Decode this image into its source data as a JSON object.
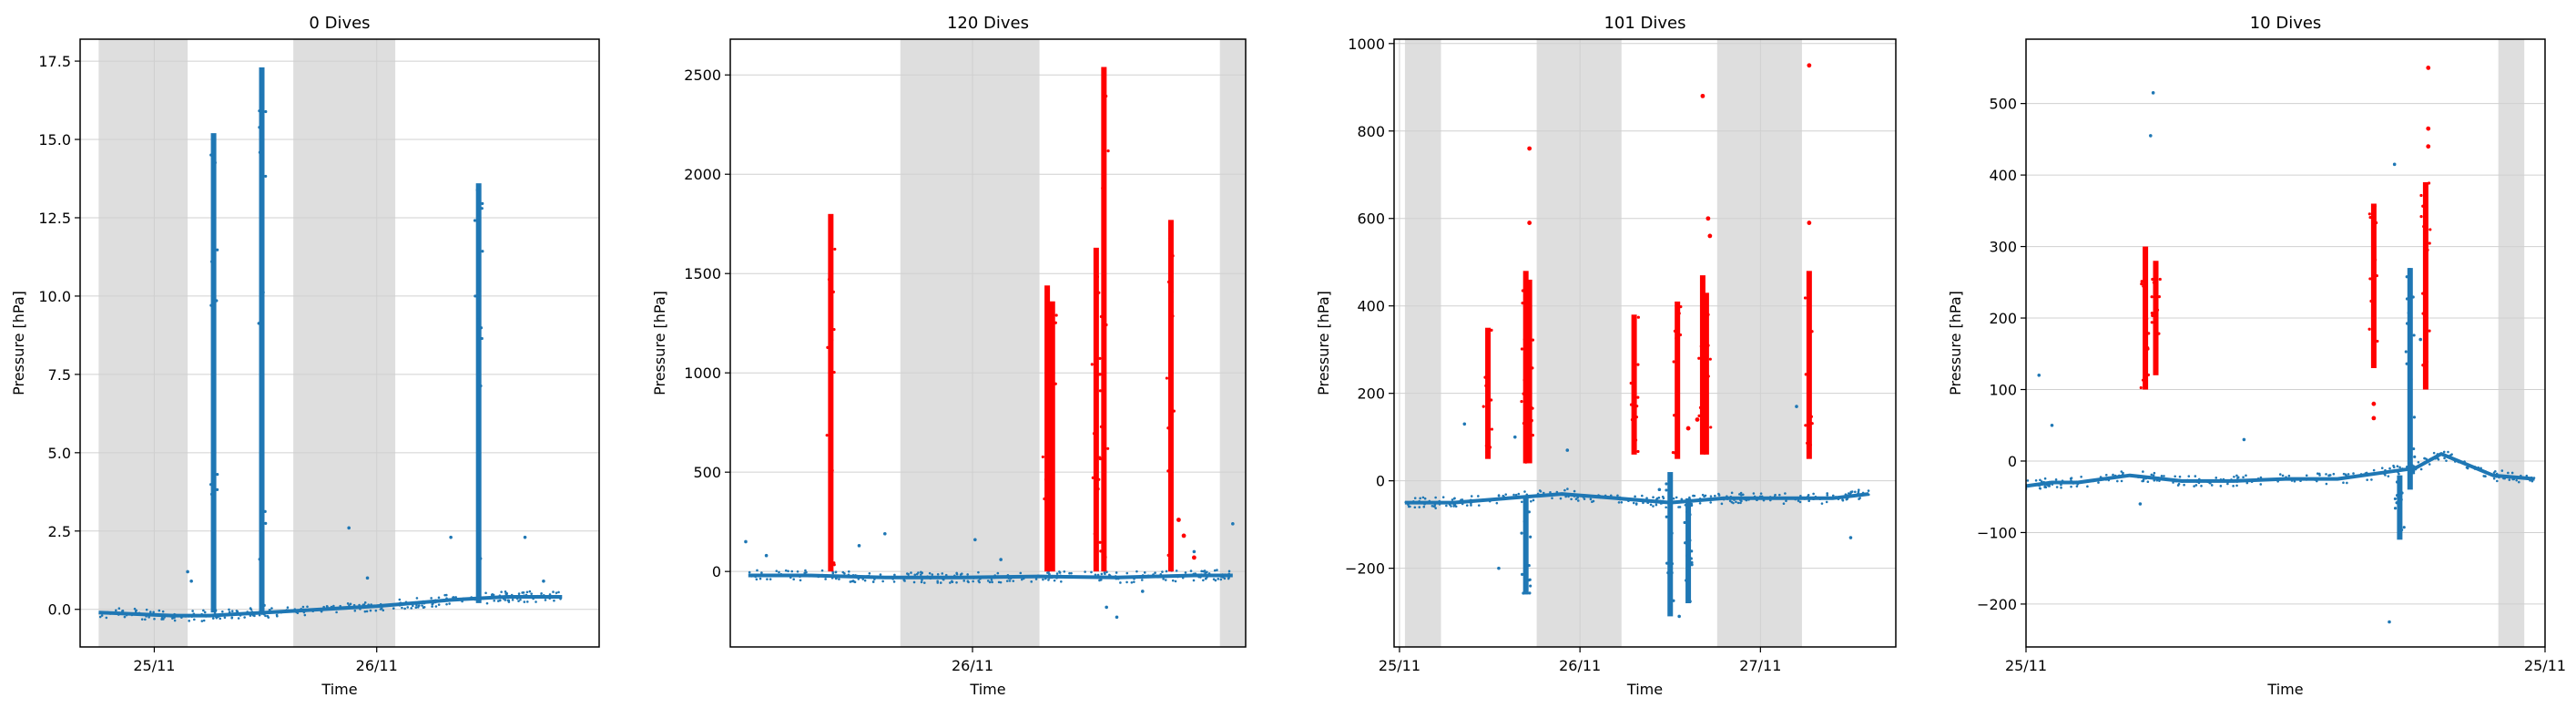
{
  "colors": {
    "scatter": "#1f77b4",
    "detected": "#ff0000",
    "night_band": "#dedede",
    "grid": "#d0d0d0",
    "axis": "#000000"
  },
  "chart_data": [
    {
      "type": "scatter",
      "title": "0 Dives",
      "xlabel": "Time",
      "ylabel": "Pressure [hPa]",
      "xlim": [
        0,
        2.8
      ],
      "ylim": [
        -1.2,
        18.2
      ],
      "yticks": [
        0.0,
        2.5,
        5.0,
        7.5,
        10.0,
        12.5,
        15.0,
        17.5
      ],
      "ytick_labels": [
        "0.0",
        "2.5",
        "5.0",
        "7.5",
        "10.0",
        "12.5",
        "15.0",
        "17.5"
      ],
      "xticks": [
        0.4,
        1.6
      ],
      "xtick_labels": [
        "25/11",
        "26/11"
      ],
      "grid": true,
      "night_bands": [
        [
          0.1,
          0.58
        ],
        [
          1.15,
          1.7
        ]
      ],
      "baseline": [
        [
          0.1,
          -0.1
        ],
        [
          0.5,
          -0.2
        ],
        [
          0.7,
          -0.2
        ],
        [
          1.0,
          -0.1
        ],
        [
          1.3,
          0.0
        ],
        [
          1.6,
          0.1
        ],
        [
          1.8,
          0.2
        ],
        [
          2.0,
          0.3
        ],
        [
          2.3,
          0.4
        ],
        [
          2.6,
          0.4
        ]
      ],
      "spikes": [
        {
          "x": 0.72,
          "ymax": 15.2,
          "ymin": -0.1,
          "color": "blue"
        },
        {
          "x": 0.98,
          "ymax": 17.3,
          "ymin": -0.1,
          "color": "blue"
        },
        {
          "x": 2.15,
          "ymax": 13.6,
          "ymin": 0.2,
          "color": "blue"
        }
      ],
      "outliers": [
        [
          0.58,
          1.2
        ],
        [
          0.6,
          0.9
        ],
        [
          1.55,
          1.0
        ],
        [
          1.45,
          2.6
        ],
        [
          2.0,
          2.3
        ],
        [
          2.4,
          2.3
        ],
        [
          2.5,
          0.9
        ],
        [
          2.3,
          0.5
        ]
      ],
      "red_points": []
    },
    {
      "type": "scatter",
      "title": "120 Dives",
      "xlabel": "Time",
      "ylabel": "Pressure [hPa]",
      "xlim": [
        0,
        2.0
      ],
      "ylim": [
        -380,
        2680
      ],
      "yticks": [
        0,
        500,
        1000,
        1500,
        2000,
        2500
      ],
      "ytick_labels": [
        "0",
        "500",
        "1000",
        "1500",
        "2000",
        "2500"
      ],
      "xticks": [
        0.94
      ],
      "xtick_labels": [
        "26/11"
      ],
      "grid": true,
      "night_bands": [
        [
          0.66,
          1.2
        ],
        [
          1.9,
          2.0
        ]
      ],
      "baseline": [
        [
          0.07,
          -20
        ],
        [
          0.3,
          -20
        ],
        [
          0.6,
          -30
        ],
        [
          0.9,
          -30
        ],
        [
          1.2,
          -25
        ],
        [
          1.5,
          -30
        ],
        [
          1.8,
          -20
        ],
        [
          1.95,
          -20
        ]
      ],
      "spikes": [
        {
          "x": 0.39,
          "ymax": 1800,
          "ymin": 0,
          "color": "red"
        },
        {
          "x": 1.23,
          "ymax": 1440,
          "ymin": 0,
          "color": "red"
        },
        {
          "x": 1.25,
          "ymax": 1360,
          "ymin": 0,
          "color": "red"
        },
        {
          "x": 1.42,
          "ymax": 1630,
          "ymin": 0,
          "color": "red"
        },
        {
          "x": 1.45,
          "ymax": 2540,
          "ymin": 0,
          "color": "red"
        },
        {
          "x": 1.71,
          "ymax": 1770,
          "ymin": 0,
          "color": "red"
        }
      ],
      "outliers": [
        [
          0.06,
          150
        ],
        [
          0.14,
          80
        ],
        [
          0.5,
          130
        ],
        [
          0.6,
          190
        ],
        [
          0.95,
          160
        ],
        [
          1.05,
          60
        ],
        [
          1.46,
          -180
        ],
        [
          1.5,
          -230
        ],
        [
          1.6,
          -100
        ],
        [
          1.95,
          240
        ],
        [
          1.8,
          100
        ]
      ],
      "red_points": [
        [
          1.74,
          260
        ],
        [
          1.76,
          180
        ],
        [
          1.8,
          70
        ]
      ]
    },
    {
      "type": "scatter",
      "title": "101 Dives",
      "xlabel": "Time",
      "ylabel": "Pressure [hPa]",
      "xlim": [
        -0.03,
        2.75
      ],
      "ylim": [
        -380,
        1010
      ],
      "yticks": [
        -200,
        0,
        200,
        400,
        600,
        800,
        1000
      ],
      "ytick_labels": [
        "−200",
        "0",
        "200",
        "400",
        "600",
        "800",
        "1000"
      ],
      "xticks": [
        0,
        1,
        2
      ],
      "xtick_labels": [
        "25/11",
        "26/11",
        "27/11"
      ],
      "grid": true,
      "night_bands": [
        [
          0.03,
          0.23
        ],
        [
          0.76,
          1.23
        ],
        [
          1.76,
          2.23
        ]
      ],
      "baseline": [
        [
          0.03,
          -50
        ],
        [
          0.3,
          -50
        ],
        [
          0.6,
          -40
        ],
        [
          0.9,
          -30
        ],
        [
          1.2,
          -40
        ],
        [
          1.5,
          -50
        ],
        [
          1.8,
          -40
        ],
        [
          2.1,
          -40
        ],
        [
          2.4,
          -40
        ],
        [
          2.6,
          -30
        ]
      ],
      "spikes": [
        {
          "x": 0.49,
          "ymax": 350,
          "ymin": 50,
          "color": "red"
        },
        {
          "x": 0.7,
          "ymax": 480,
          "ymin": 40,
          "color": "red"
        },
        {
          "x": 0.72,
          "ymax": 460,
          "ymin": 40,
          "color": "red"
        },
        {
          "x": 1.3,
          "ymax": 380,
          "ymin": 60,
          "color": "red"
        },
        {
          "x": 1.54,
          "ymax": 410,
          "ymin": 50,
          "color": "red"
        },
        {
          "x": 1.68,
          "ymax": 470,
          "ymin": 60,
          "color": "red"
        },
        {
          "x": 1.7,
          "ymax": 430,
          "ymin": 60,
          "color": "red"
        },
        {
          "x": 2.27,
          "ymax": 480,
          "ymin": 50,
          "color": "red"
        },
        {
          "x": 0.7,
          "ymax": -40,
          "ymin": -260,
          "color": "blue"
        },
        {
          "x": 1.6,
          "ymax": -40,
          "ymin": -280,
          "color": "blue"
        },
        {
          "x": 1.5,
          "ymax": 20,
          "ymin": -310,
          "color": "blue"
        }
      ],
      "outliers": [
        [
          0.36,
          130
        ],
        [
          0.64,
          100
        ],
        [
          0.93,
          70
        ],
        [
          1.44,
          -20
        ],
        [
          1.55,
          -310
        ],
        [
          2.2,
          170
        ],
        [
          2.5,
          -130
        ],
        [
          0.55,
          -200
        ]
      ],
      "red_points": [
        [
          0.72,
          760
        ],
        [
          0.72,
          590
        ],
        [
          1.68,
          880
        ],
        [
          1.71,
          600
        ],
        [
          1.72,
          560
        ],
        [
          2.27,
          950
        ],
        [
          2.27,
          590
        ],
        [
          1.65,
          140
        ],
        [
          1.6,
          120
        ]
      ]
    },
    {
      "type": "scatter",
      "title": "10 Dives",
      "xlabel": "Time",
      "ylabel": "Pressure [hPa]",
      "xlim": [
        0,
        1.0
      ],
      "ylim": [
        -260,
        590
      ],
      "yticks": [
        -200,
        -100,
        0,
        100,
        200,
        300,
        400,
        500
      ],
      "ytick_labels": [
        "−200",
        "−100",
        "0",
        "100",
        "200",
        "300",
        "400",
        "500"
      ],
      "xticks": [
        0,
        1.0
      ],
      "xtick_labels": [
        "25/11",
        "25/11"
      ],
      "grid": true,
      "night_bands": [
        [
          0.91,
          0.96
        ]
      ],
      "baseline": [
        [
          0.0,
          -35
        ],
        [
          0.05,
          -30
        ],
        [
          0.1,
          -30
        ],
        [
          0.2,
          -20
        ],
        [
          0.3,
          -28
        ],
        [
          0.4,
          -28
        ],
        [
          0.5,
          -25
        ],
        [
          0.6,
          -25
        ],
        [
          0.7,
          -15
        ],
        [
          0.75,
          -10
        ],
        [
          0.8,
          10
        ],
        [
          0.9,
          -20
        ],
        [
          0.98,
          -25
        ]
      ],
      "spikes": [
        {
          "x": 0.23,
          "ymax": 300,
          "ymin": 100,
          "color": "red"
        },
        {
          "x": 0.25,
          "ymax": 280,
          "ymin": 120,
          "color": "red"
        },
        {
          "x": 0.67,
          "ymax": 360,
          "ymin": 130,
          "color": "red"
        },
        {
          "x": 0.77,
          "ymax": 390,
          "ymin": 100,
          "color": "red"
        },
        {
          "x": 0.72,
          "ymax": -20,
          "ymin": -110,
          "color": "blue"
        },
        {
          "x": 0.74,
          "ymax": 270,
          "ymin": -40,
          "color": "blue"
        }
      ],
      "outliers": [
        [
          0.025,
          120
        ],
        [
          0.05,
          50
        ],
        [
          0.245,
          515
        ],
        [
          0.24,
          455
        ],
        [
          0.22,
          -60
        ],
        [
          0.42,
          30
        ],
        [
          0.7,
          -225
        ],
        [
          0.71,
          415
        ],
        [
          0.74,
          160
        ],
        [
          0.76,
          170
        ]
      ],
      "red_points": [
        [
          0.775,
          550
        ],
        [
          0.775,
          465
        ],
        [
          0.775,
          440
        ],
        [
          0.67,
          80
        ],
        [
          0.67,
          60
        ]
      ]
    }
  ]
}
